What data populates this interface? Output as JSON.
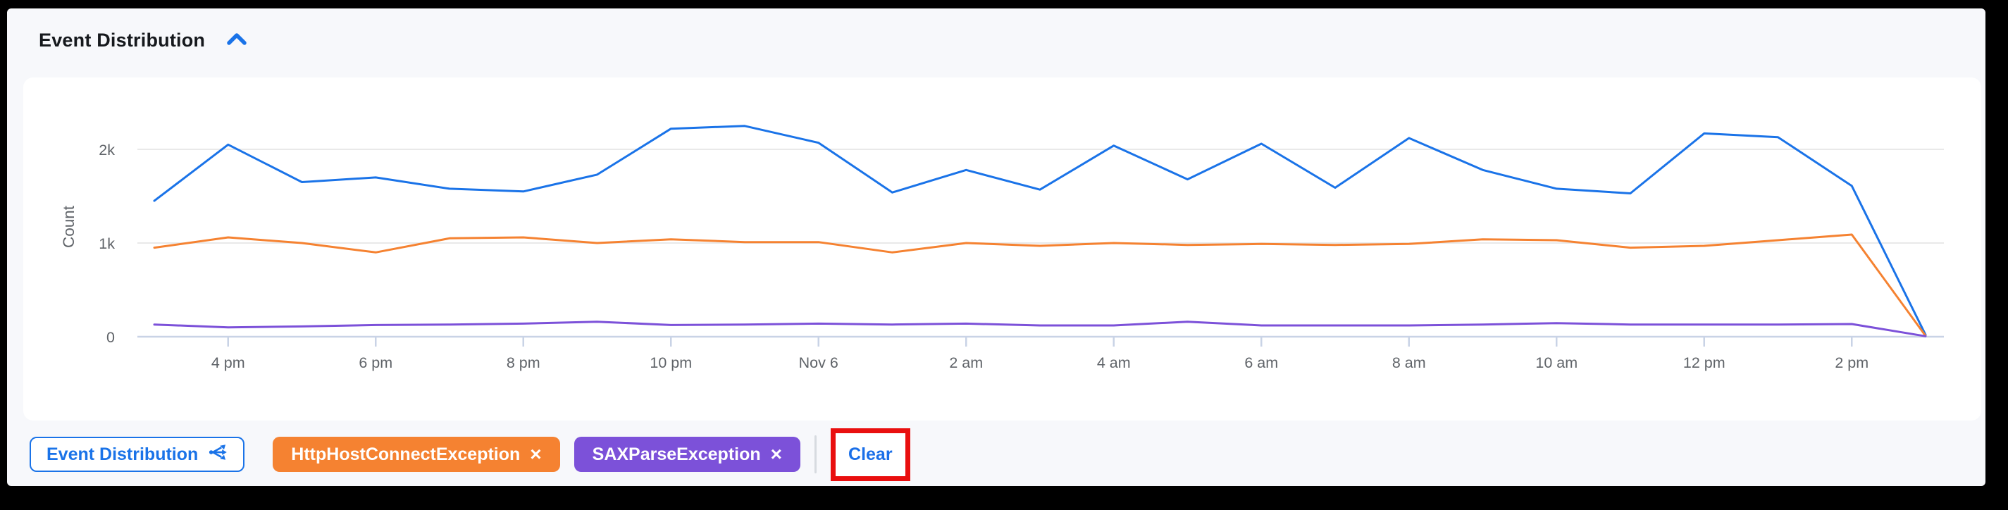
{
  "header": {
    "title": "Event Distribution",
    "collapse_icon": "chevron-up-icon"
  },
  "colors": {
    "page_background": "#f7f8fb",
    "card_background": "#ffffff",
    "accent_blue": "#1a73e8",
    "series_blue": "#1a73e8",
    "series_orange": "#f58231",
    "series_purple": "#7c51d9",
    "annotation_red": "#e90f0f",
    "gridline": "#e9e9e9",
    "axis": "#c9d3e6",
    "tick_text": "#5f6368"
  },
  "chart_data": {
    "type": "line",
    "title": "Event Distribution",
    "xlabel": "",
    "ylabel": "Count",
    "grid": true,
    "legend_position": "none",
    "ylim": [
      0,
      2400
    ],
    "y_ticks": [
      0,
      1000,
      2000
    ],
    "y_tick_labels": [
      "0",
      "1k",
      "2k"
    ],
    "x": [
      0,
      1,
      2,
      3,
      4,
      5,
      6,
      7,
      8,
      9,
      10,
      11,
      12,
      13,
      14,
      15,
      16,
      17,
      18,
      19,
      20,
      21,
      22,
      23,
      24
    ],
    "x_unit": "hours, one point per hour, Nov 5 3 pm through Nov 6 3 pm",
    "x_tick_indices": [
      1,
      3,
      5,
      7,
      9,
      11,
      13,
      15,
      17,
      19,
      21,
      23
    ],
    "x_tick_labels": [
      "4 pm",
      "6 pm",
      "8 pm",
      "10 pm",
      "Nov 6",
      "2 am",
      "4 am",
      "6 am",
      "8 am",
      "10 am",
      "12 pm",
      "2 pm"
    ],
    "series": [
      {
        "name": "Event Distribution",
        "color": "#1a73e8",
        "values": [
          1450,
          2050,
          1650,
          1700,
          1580,
          1550,
          1730,
          2220,
          2250,
          2070,
          1540,
          1780,
          1570,
          2040,
          1680,
          2060,
          1590,
          2120,
          1780,
          1580,
          1530,
          2170,
          2130,
          1610,
          20
        ]
      },
      {
        "name": "HttpHostConnectException",
        "color": "#f58231",
        "values": [
          950,
          1060,
          1000,
          900,
          1050,
          1060,
          1000,
          1040,
          1010,
          1010,
          900,
          1000,
          970,
          1000,
          980,
          990,
          980,
          990,
          1040,
          1030,
          950,
          970,
          1030,
          1090,
          10
        ]
      },
      {
        "name": "SAXParseException",
        "color": "#7c51d9",
        "values": [
          130,
          100,
          110,
          125,
          130,
          140,
          160,
          125,
          130,
          140,
          130,
          140,
          120,
          120,
          160,
          120,
          120,
          120,
          130,
          145,
          130,
          130,
          130,
          135,
          5
        ]
      }
    ]
  },
  "legend_row": {
    "chart_chip": {
      "label": "Event Distribution",
      "icon": "share-icon"
    },
    "filters": [
      {
        "label": "HttpHostConnectException",
        "remove": "×",
        "color": "#f58231"
      },
      {
        "label": "SAXParseException",
        "remove": "×",
        "color": "#7c51d9"
      }
    ],
    "clear_label": "Clear"
  }
}
